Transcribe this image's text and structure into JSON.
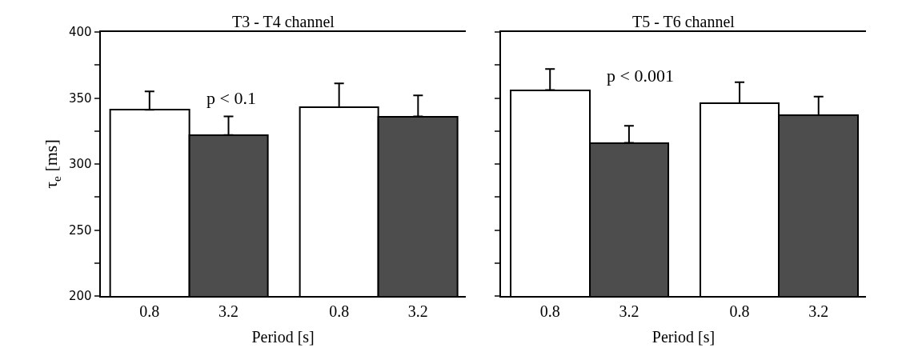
{
  "chart_data": [
    {
      "type": "bar",
      "title": "T3 - T4 channel",
      "xlabel": "Period [s]",
      "ylabel": "τ$_{e}$ [ms]",
      "categories": [
        "0.8",
        "3.2",
        "0.8",
        "3.2"
      ],
      "values": [
        341,
        322,
        343,
        336
      ],
      "colors": [
        "#ffffff",
        "#4d4d4d",
        "#ffffff",
        "#4d4d4d"
      ],
      "errors": [
        [
          341,
          355
        ],
        [
          322,
          336
        ],
        [
          343,
          361
        ],
        [
          336,
          352
        ]
      ],
      "ylim": [
        200,
        400
      ],
      "yticks": [
        200,
        {
          "value": 225,
          "label": null
        },
        250,
        {
          "value": 275,
          "label": null
        },
        300,
        {
          "value": 325,
          "label": null
        },
        350,
        {
          "value": 375,
          "label": null
        },
        400
      ],
      "annotations": [
        "p < 0.1"
      ]
    },
    {
      "type": "bar",
      "title": "T5 - T6 channel",
      "xlabel": "Period [s]",
      "categories": [
        "0.8",
        "3.2",
        "0.8",
        "3.2"
      ],
      "values": [
        356,
        316,
        346,
        337
      ],
      "colors": [
        "#ffffff",
        "#4d4d4d",
        "#ffffff",
        "#4d4d4d"
      ],
      "errors": [
        [
          356,
          372
        ],
        [
          316,
          329
        ],
        [
          346,
          362
        ],
        [
          337,
          351
        ]
      ],
      "ylim": [
        200,
        400
      ],
      "yticks": [
        {
          "value": 200,
          "label": null
        },
        {
          "value": 225,
          "label": null
        },
        {
          "value": 250,
          "label": null
        },
        {
          "value": 275,
          "label": null
        },
        {
          "value": 300,
          "label": null
        },
        {
          "value": 325,
          "label": null
        },
        {
          "value": 350,
          "label": null
        },
        {
          "value": 375,
          "label": null
        },
        {
          "value": 400,
          "label": null
        }
      ],
      "tick_labels": "x",
      "annotations": [
        "p < 0.001"
      ]
    }
  ]
}
